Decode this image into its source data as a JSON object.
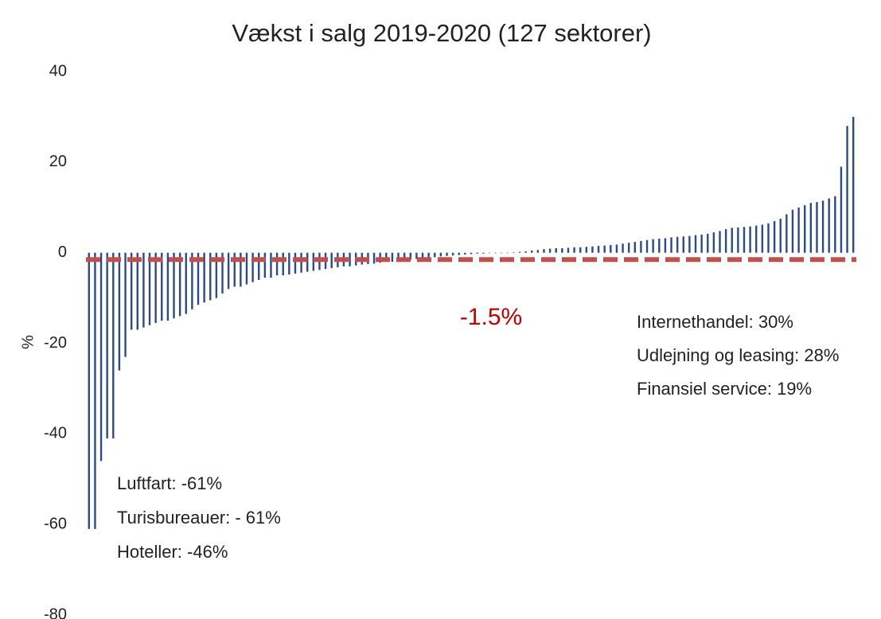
{
  "chart_data": {
    "type": "bar",
    "title": "Vækst i salg 2019-2020 (127 sektorer)",
    "ylabel": "%",
    "categories": [
      null,
      null,
      null,
      null,
      null,
      null,
      null,
      null,
      null,
      null,
      null,
      null,
      null,
      null,
      null,
      null,
      null,
      null,
      null,
      null,
      null,
      null,
      null,
      null,
      null,
      null,
      null,
      null,
      null,
      null,
      null,
      null,
      null,
      null,
      null,
      null,
      null,
      null,
      null,
      null,
      null,
      null,
      null,
      null,
      null,
      null,
      null,
      null,
      null,
      null,
      null,
      null,
      null,
      null,
      null,
      null,
      null,
      null,
      null,
      null,
      null,
      null,
      null,
      null,
      null,
      null,
      null,
      null,
      null,
      null,
      null,
      null,
      null,
      null,
      null,
      null,
      null,
      null,
      null,
      null,
      null,
      null,
      null,
      null,
      null,
      null,
      null,
      null,
      null,
      null,
      null,
      null,
      null,
      null,
      null,
      null,
      null,
      null,
      null,
      null,
      null,
      null,
      null,
      null,
      null,
      null,
      null,
      null,
      null,
      null,
      null,
      null,
      null,
      null,
      null,
      null,
      null,
      null,
      null,
      null,
      null,
      null,
      null,
      null,
      null,
      null,
      null
    ],
    "values": [
      -61,
      -61,
      -46,
      -41,
      -41,
      -26,
      -23,
      -17,
      -17,
      -16.5,
      -16,
      -15.5,
      -15,
      -15,
      -14.5,
      -14,
      -13.5,
      -12.5,
      -11.5,
      -11,
      -10.5,
      -10,
      -9,
      -8,
      -7.5,
      -7.5,
      -7,
      -6.5,
      -6,
      -5.5,
      -5.5,
      -5,
      -5,
      -4.8,
      -4.6,
      -4.4,
      -4.2,
      -4,
      -3.8,
      -3.6,
      -3.4,
      -3.2,
      -3,
      -3,
      -2.8,
      -2.6,
      -2.5,
      -2.4,
      -2.2,
      -2,
      -2,
      -1.8,
      -1.6,
      -1.5,
      -1.4,
      -1.2,
      -1,
      -1,
      -0.8,
      -0.7,
      -0.6,
      -0.5,
      -0.4,
      -0.3,
      -0.2,
      -0.2,
      -0.1,
      -0.1,
      0,
      0,
      0.1,
      0.2,
      0.3,
      0.5,
      0.6,
      0.8,
      0.9,
      1,
      1,
      1.1,
      1.2,
      1.2,
      1.3,
      1.4,
      1.5,
      1.6,
      1.7,
      1.8,
      2,
      2.2,
      2.4,
      2.6,
      2.8,
      3,
      3.1,
      3.2,
      3.4,
      3.5,
      3.6,
      3.7,
      3.9,
      4,
      4.2,
      4.5,
      4.8,
      5.2,
      5.5,
      5.6,
      5.7,
      5.8,
      6,
      6.2,
      6.5,
      7,
      7.5,
      8.5,
      9.5,
      10,
      10.5,
      11,
      11.2,
      11.5,
      12,
      12.5,
      19,
      28,
      30
    ],
    "color": "#2b4a8b",
    "ylim": [
      -80,
      40
    ],
    "yticks": [
      -80,
      -60,
      -40,
      -20,
      0,
      20,
      40
    ],
    "grid": false,
    "reference_line": {
      "value": -1.5,
      "label": "-1.5%",
      "color": "#c0504d"
    },
    "annotations_left": [
      "Luftfart: -61%",
      "Turisbureauer: - 61%",
      "Hoteller: -46%"
    ],
    "annotations_right": [
      "Internethandel: 30%",
      "Udlejning og leasing: 28%",
      "Finansiel service: 19%"
    ]
  }
}
